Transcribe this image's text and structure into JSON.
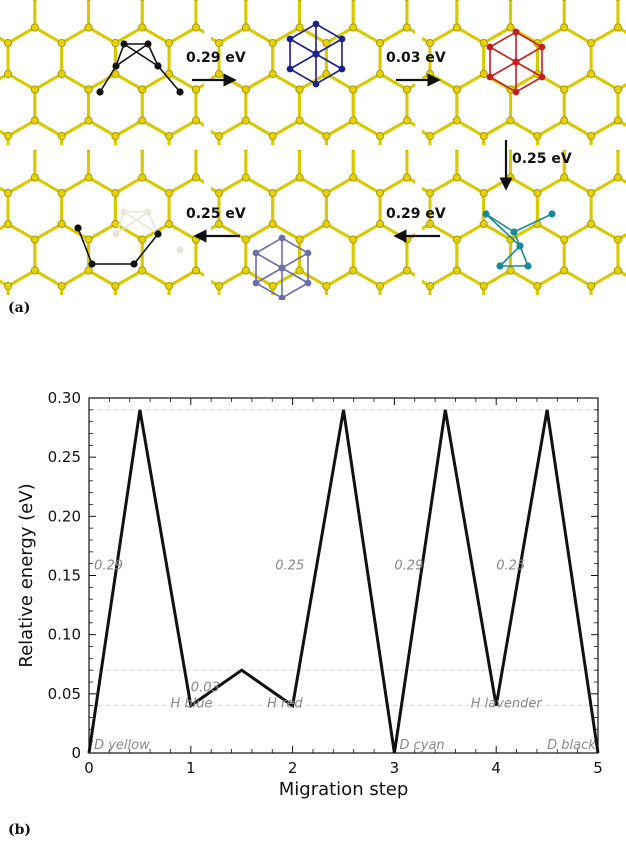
{
  "panel_a": {
    "label": "(a)",
    "arrows": [
      {
        "energy": "0.29 eV"
      },
      {
        "energy": "0.03 eV"
      },
      {
        "energy": "0.25 eV"
      },
      {
        "energy": "0.25 eV"
      },
      {
        "energy": "0.29 eV"
      }
    ],
    "colors": {
      "lattice": "#d8c900",
      "atom": "#e6d200",
      "blue": "#1b1f8a",
      "red": "#c41e1e",
      "cyan": "#1a8a96",
      "lavender": "#6b6fa8",
      "black": "#111111",
      "pale": "#e8e6d6"
    }
  },
  "panel_b": {
    "label": "(b)"
  },
  "chart_data": {
    "type": "line",
    "xlabel": "Migration step",
    "ylabel": "Relative energy (eV)",
    "xlim": [
      0,
      5
    ],
    "ylim": [
      0,
      0.3
    ],
    "xticks": [
      "0",
      "1",
      "2",
      "3",
      "4",
      "5"
    ],
    "yticks": [
      "0",
      "0.05",
      "0.10",
      "0.15",
      "0.20",
      "0.25",
      "0.30"
    ],
    "x": [
      0,
      0.5,
      1,
      1.5,
      2,
      2.5,
      3,
      3.5,
      4,
      4.5,
      5
    ],
    "y": [
      0,
      0.29,
      0.04,
      0.07,
      0.04,
      0.29,
      0,
      0.29,
      0.04,
      0.29,
      0
    ],
    "reference_lines": [
      0.29,
      0.07,
      0.04
    ],
    "state_labels": [
      {
        "text": "D yellow",
        "x": 0.05,
        "y": 0.0
      },
      {
        "text": "H blue",
        "x": 0.8,
        "y": 0.035
      },
      {
        "text": "H red",
        "x": 1.75,
        "y": 0.035
      },
      {
        "text": "D cyan",
        "x": 3.05,
        "y": 0.0
      },
      {
        "text": "H lavender",
        "x": 3.75,
        "y": 0.035
      },
      {
        "text": "D black",
        "x": 4.5,
        "y": 0.0
      }
    ],
    "barrier_labels": [
      {
        "text": "0.29",
        "x": 0.05,
        "y": 0.155
      },
      {
        "text": "0.03",
        "x": 1.0,
        "y": 0.052
      },
      {
        "text": "0.25",
        "x": 1.83,
        "y": 0.155
      },
      {
        "text": "0.29",
        "x": 3.0,
        "y": 0.155
      },
      {
        "text": "0.25",
        "x": 4.0,
        "y": 0.155
      }
    ],
    "grid": false,
    "legend": "none"
  }
}
